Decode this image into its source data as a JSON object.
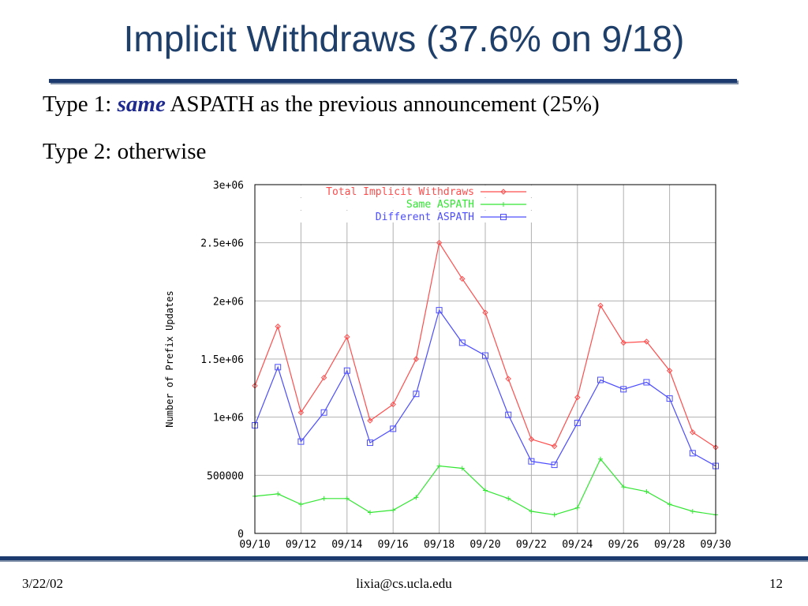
{
  "slide": {
    "title": "Implicit Withdraws (37.6% on 9/18)",
    "bullet1_prefix": "Type 1: ",
    "bullet1_emph": "same",
    "bullet1_suffix": " ASPATH as the previous announcement (25%)",
    "bullet2": "Type 2: otherwise",
    "footer_date": "3/22/02",
    "footer_email": "lixia@cs.ucla.edu",
    "footer_page": "12"
  },
  "colors": {
    "title": "#1f3f6b",
    "emphasis": "#1f2a8f",
    "rule": "#1c3a6e",
    "total": "#ff4d4d",
    "same": "#33e633",
    "different": "#4d4dff"
  },
  "chart_data": {
    "type": "line",
    "ylabel": "Number of Prefix Updates",
    "xlabel": "",
    "ylim": [
      0,
      3000000
    ],
    "yticks": [
      0,
      500000,
      1000000,
      1500000,
      2000000,
      2500000,
      3000000
    ],
    "ytick_labels": [
      "0",
      "500000",
      "1e+06",
      "1.5e+06",
      "2e+06",
      "2.5e+06",
      "3e+06"
    ],
    "xtick_labels": [
      "09/10",
      "09/12",
      "09/14",
      "09/16",
      "09/18",
      "09/20",
      "09/22",
      "09/24",
      "09/26",
      "09/28",
      "09/30"
    ],
    "grid": true,
    "legend": "top-left",
    "x": [
      10,
      11,
      12,
      13,
      14,
      15,
      16,
      17,
      18,
      19,
      20,
      21,
      22,
      23,
      24,
      25,
      26,
      27,
      28,
      29,
      30
    ],
    "series": [
      {
        "name": "Total Implicit Withdraws",
        "color": "#ff4d4d",
        "marker": "diamond",
        "values": [
          1270000,
          1780000,
          1040000,
          1340000,
          1690000,
          970000,
          1110000,
          1500000,
          2500000,
          2190000,
          1900000,
          1330000,
          810000,
          750000,
          1170000,
          1960000,
          1640000,
          1650000,
          1400000,
          870000,
          740000
        ]
      },
      {
        "name": "Same ASPATH",
        "color": "#33e633",
        "marker": "plus",
        "values": [
          320000,
          340000,
          250000,
          300000,
          300000,
          180000,
          200000,
          310000,
          580000,
          560000,
          370000,
          300000,
          190000,
          160000,
          220000,
          640000,
          400000,
          360000,
          250000,
          190000,
          160000
        ]
      },
      {
        "name": "Different ASPATH",
        "color": "#4d4dff",
        "marker": "square",
        "values": [
          930000,
          1430000,
          790000,
          1040000,
          1400000,
          780000,
          900000,
          1200000,
          1920000,
          1640000,
          1530000,
          1020000,
          620000,
          590000,
          950000,
          1320000,
          1240000,
          1300000,
          1160000,
          690000,
          580000
        ]
      }
    ]
  }
}
